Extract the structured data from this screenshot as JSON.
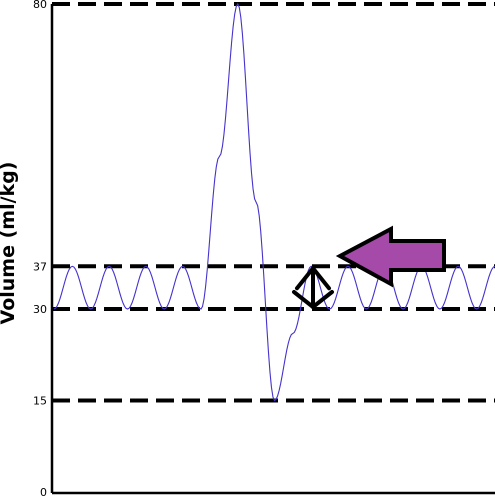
{
  "chart_data": {
    "type": "line",
    "title": "",
    "xlabel": "",
    "ylabel": "Volume (ml/kg)",
    "ylim": [
      0,
      80
    ],
    "yticks": [
      0,
      15,
      30,
      37,
      80
    ],
    "ytick_labels": [
      "0",
      "15",
      "30",
      "37",
      "80"
    ],
    "reference_lines": [
      15,
      30,
      37,
      80
    ],
    "grid": false,
    "legend": "none",
    "series": [
      {
        "color": "#4433cc",
        "x": [
          0,
          0.5,
          1,
          1.5,
          2,
          2.5,
          3,
          3.5,
          4,
          4.5,
          5,
          5.5,
          6,
          6.5,
          7,
          7.5,
          8,
          8.5,
          9,
          9.5,
          10,
          10.5,
          11,
          11.5,
          12
        ],
        "y": [
          30,
          37,
          30,
          37,
          30,
          37,
          30,
          37,
          30,
          55,
          80,
          47.5,
          15,
          26,
          37,
          30,
          37,
          30,
          37,
          30,
          37,
          30,
          37,
          30,
          37
        ]
      }
    ],
    "annotations": [
      {
        "type": "double-arrow",
        "from": 30,
        "to": 37,
        "color": "#000000"
      },
      {
        "type": "arrow-left",
        "color": "#a54aa8"
      }
    ]
  }
}
